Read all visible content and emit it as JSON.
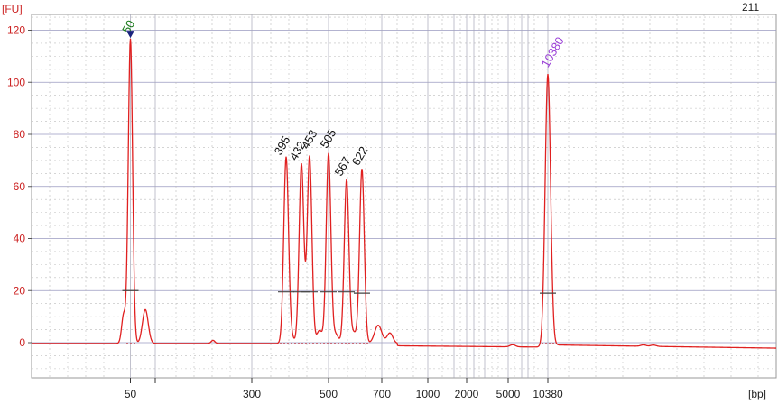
{
  "chart_data": {
    "type": "line",
    "title": "",
    "sample_id": "211",
    "ylabel": "[FU]",
    "xlabel": "[bp]",
    "ylim": [
      -13,
      125
    ],
    "y_ticks": [
      0,
      20,
      40,
      60,
      80,
      100,
      120
    ],
    "x_scale": "bp (sizing-ladder, non-linear)",
    "x_tick_labels": [
      "50",
      "300",
      "500",
      "700",
      "1000",
      "2000",
      "5000",
      "10380"
    ],
    "grid": true,
    "series": [
      {
        "color": "#e02020",
        "baseline": 0,
        "peaks": [
          {
            "label": "50",
            "height": 117,
            "label_color": "#1a7a1a",
            "marker": "triangle"
          },
          {
            "label": "395",
            "height": 71,
            "label_color": "#111111"
          },
          {
            "label": "432",
            "height": 69,
            "label_color": "#111111"
          },
          {
            "label": "453",
            "height": 72,
            "label_color": "#111111"
          },
          {
            "label": "505",
            "height": 73,
            "label_color": "#111111"
          },
          {
            "label": "567",
            "height": 63,
            "label_color": "#111111"
          },
          {
            "label": "622",
            "height": 67,
            "label_color": "#111111"
          },
          {
            "label": "10380",
            "height": 104,
            "label_color": "#9a3fd6"
          }
        ],
        "minor_peaks": [
          {
            "near": "left of 50",
            "height": 11
          },
          {
            "near": "right of 50",
            "height": 13
          },
          {
            "near": "after 622",
            "height": 7
          },
          {
            "near": "after 622 (second)",
            "height": 4
          }
        ],
        "smear_markers": [
          {
            "peak": "50",
            "y": 20
          },
          {
            "peak": "395",
            "y": 19.5
          },
          {
            "peak": "432",
            "y": 19.5
          },
          {
            "peak": "453",
            "y": 19.5
          },
          {
            "peak": "505",
            "y": 19.5
          },
          {
            "peak": "567",
            "y": 19.5
          },
          {
            "peak": "622",
            "y": 19
          },
          {
            "peak": "10380",
            "y": 19
          }
        ]
      }
    ]
  },
  "colors": {
    "trace": "#e02020",
    "axis_label": "#cc2222",
    "grid": "#bcbcbc",
    "marker_50": "#1a237e",
    "label_lower_marker": "#1a7a1a",
    "label_upper_marker": "#9a3fd6"
  }
}
